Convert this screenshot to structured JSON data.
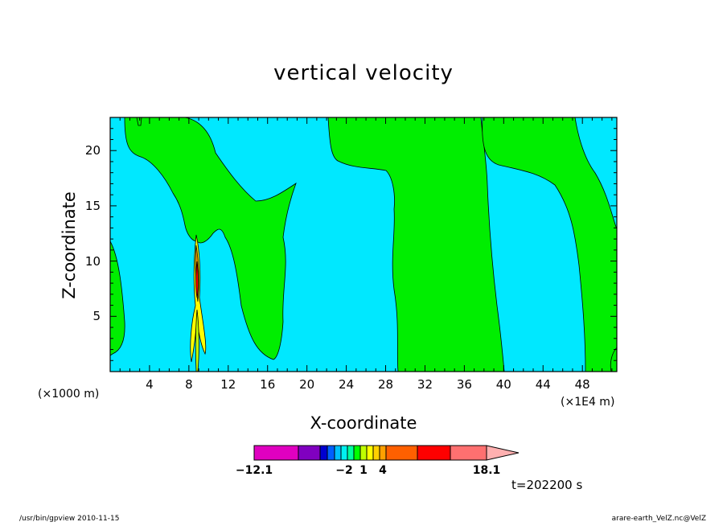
{
  "chart_data": {
    "type": "contour",
    "title": "vertical velocity",
    "xlabel": "X-coordinate",
    "ylabel": "Z-coordinate",
    "x_unit_left": "(×1000 m)",
    "x_unit_right": "(×1E4 m)",
    "xlim": [
      0,
      51.5
    ],
    "ylim": [
      0,
      23
    ],
    "x_ticks": [
      4,
      8,
      12,
      16,
      20,
      24,
      28,
      32,
      36,
      40,
      44,
      48
    ],
    "y_ticks": [
      5,
      10,
      15,
      20
    ],
    "colorbar": {
      "min": -12.1,
      "max": 18.1,
      "tick_labels": [
        "-12.1",
        "-2",
        "1",
        "4",
        "18.1"
      ],
      "bands": [
        {
          "from": -12.1,
          "to": -8,
          "color": "#e000c0"
        },
        {
          "from": -8,
          "to": -6,
          "color": "#8000c0"
        },
        {
          "from": -6,
          "to": -5,
          "color": "#0000d0"
        },
        {
          "from": -5,
          "to": -4,
          "color": "#0060ff"
        },
        {
          "from": -4,
          "to": -3,
          "color": "#00c0ff"
        },
        {
          "from": -3,
          "to": -2,
          "color": "#00f0f0"
        },
        {
          "from": -2,
          "to": -1,
          "color": "#00ffa0"
        },
        {
          "from": -1,
          "to": 0,
          "color": "#00ff00"
        },
        {
          "from": 0,
          "to": 1,
          "color": "#c0ff00"
        },
        {
          "from": 1,
          "to": 2,
          "color": "#ffff00"
        },
        {
          "from": 2,
          "to": 3,
          "color": "#ffd000"
        },
        {
          "from": 3,
          "to": 4,
          "color": "#ffa000"
        },
        {
          "from": 4,
          "to": 8,
          "color": "#ff6000"
        },
        {
          "from": 8,
          "to": 12,
          "color": "#ff0000"
        },
        {
          "from": 12,
          "to": 16,
          "color": "#ff7070"
        },
        {
          "from": 16,
          "to": 18.1,
          "color": "#ffb0b0"
        }
      ]
    },
    "regions": [
      {
        "level": "background",
        "color": "#00e8ff"
      },
      {
        "level": "positive",
        "color": "#00ee00"
      }
    ]
  },
  "annotation": {
    "time": "t=202200 s"
  },
  "footer": {
    "left": "/usr/bin/gpview   2010-11-15",
    "right": "arare-earth_VelZ.nc@VelZ"
  }
}
